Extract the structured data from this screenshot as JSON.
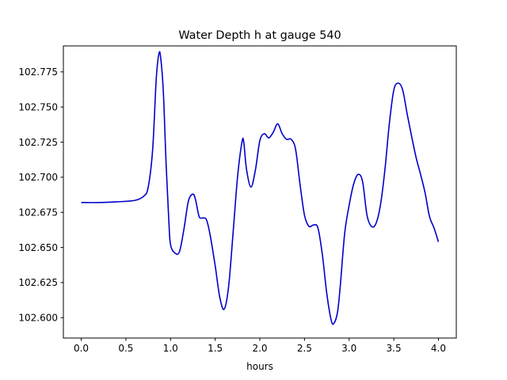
{
  "chart_data": {
    "type": "line",
    "title": "Water Depth h at gauge 540",
    "xlabel": "hours",
    "ylabel": "",
    "xlim": [
      -0.2,
      4.2
    ],
    "ylim": [
      102.5855,
      102.7935
    ],
    "xticks": [
      0.0,
      0.5,
      1.0,
      1.5,
      2.0,
      2.5,
      3.0,
      3.5,
      4.0
    ],
    "xtick_labels": [
      "0.0",
      "0.5",
      "1.0",
      "1.5",
      "2.0",
      "2.5",
      "3.0",
      "3.5",
      "4.0"
    ],
    "yticks": [
      102.6,
      102.625,
      102.65,
      102.675,
      102.7,
      102.725,
      102.75,
      102.775
    ],
    "ytick_labels": [
      "102.600",
      "102.625",
      "102.650",
      "102.675",
      "102.700",
      "102.725",
      "102.750",
      "102.775"
    ],
    "grid": false,
    "series": [
      {
        "name": "",
        "color": "#0000cc",
        "x": [
          0.0,
          0.2,
          0.4,
          0.6,
          0.7,
          0.75,
          0.8,
          0.84,
          0.87,
          0.89,
          0.92,
          0.95,
          0.98,
          1.0,
          1.05,
          1.1,
          1.15,
          1.2,
          1.25,
          1.28,
          1.32,
          1.36,
          1.4,
          1.44,
          1.5,
          1.55,
          1.6,
          1.65,
          1.7,
          1.75,
          1.8,
          1.82,
          1.85,
          1.9,
          1.95,
          2.0,
          2.05,
          2.1,
          2.15,
          2.2,
          2.25,
          2.3,
          2.35,
          2.4,
          2.45,
          2.5,
          2.55,
          2.6,
          2.65,
          2.7,
          2.75,
          2.8,
          2.83,
          2.87,
          2.9,
          2.95,
          3.0,
          3.05,
          3.1,
          3.15,
          3.2,
          3.25,
          3.3,
          3.35,
          3.4,
          3.45,
          3.5,
          3.55,
          3.6,
          3.65,
          3.7,
          3.75,
          3.8,
          3.85,
          3.9,
          3.95,
          4.0
        ],
        "y": [
          102.682,
          102.682,
          102.6825,
          102.6835,
          102.6865,
          102.693,
          102.72,
          102.77,
          102.788,
          102.785,
          102.76,
          102.71,
          102.67,
          102.652,
          102.646,
          102.647,
          102.663,
          102.683,
          102.688,
          102.684,
          102.672,
          102.671,
          102.67,
          102.66,
          102.637,
          102.615,
          102.606,
          102.622,
          102.66,
          102.7,
          102.725,
          102.725,
          102.706,
          102.693,
          102.705,
          102.726,
          102.731,
          102.728,
          102.732,
          102.738,
          102.731,
          102.727,
          102.727,
          102.72,
          102.695,
          102.673,
          102.665,
          102.666,
          102.664,
          102.645,
          102.617,
          102.598,
          102.596,
          102.604,
          102.622,
          102.66,
          102.68,
          102.695,
          102.702,
          102.697,
          102.673,
          102.665,
          102.667,
          102.68,
          102.705,
          102.738,
          102.762,
          102.767,
          102.762,
          102.745,
          102.729,
          102.714,
          102.702,
          102.689,
          102.672,
          102.664,
          102.654
        ]
      }
    ]
  }
}
